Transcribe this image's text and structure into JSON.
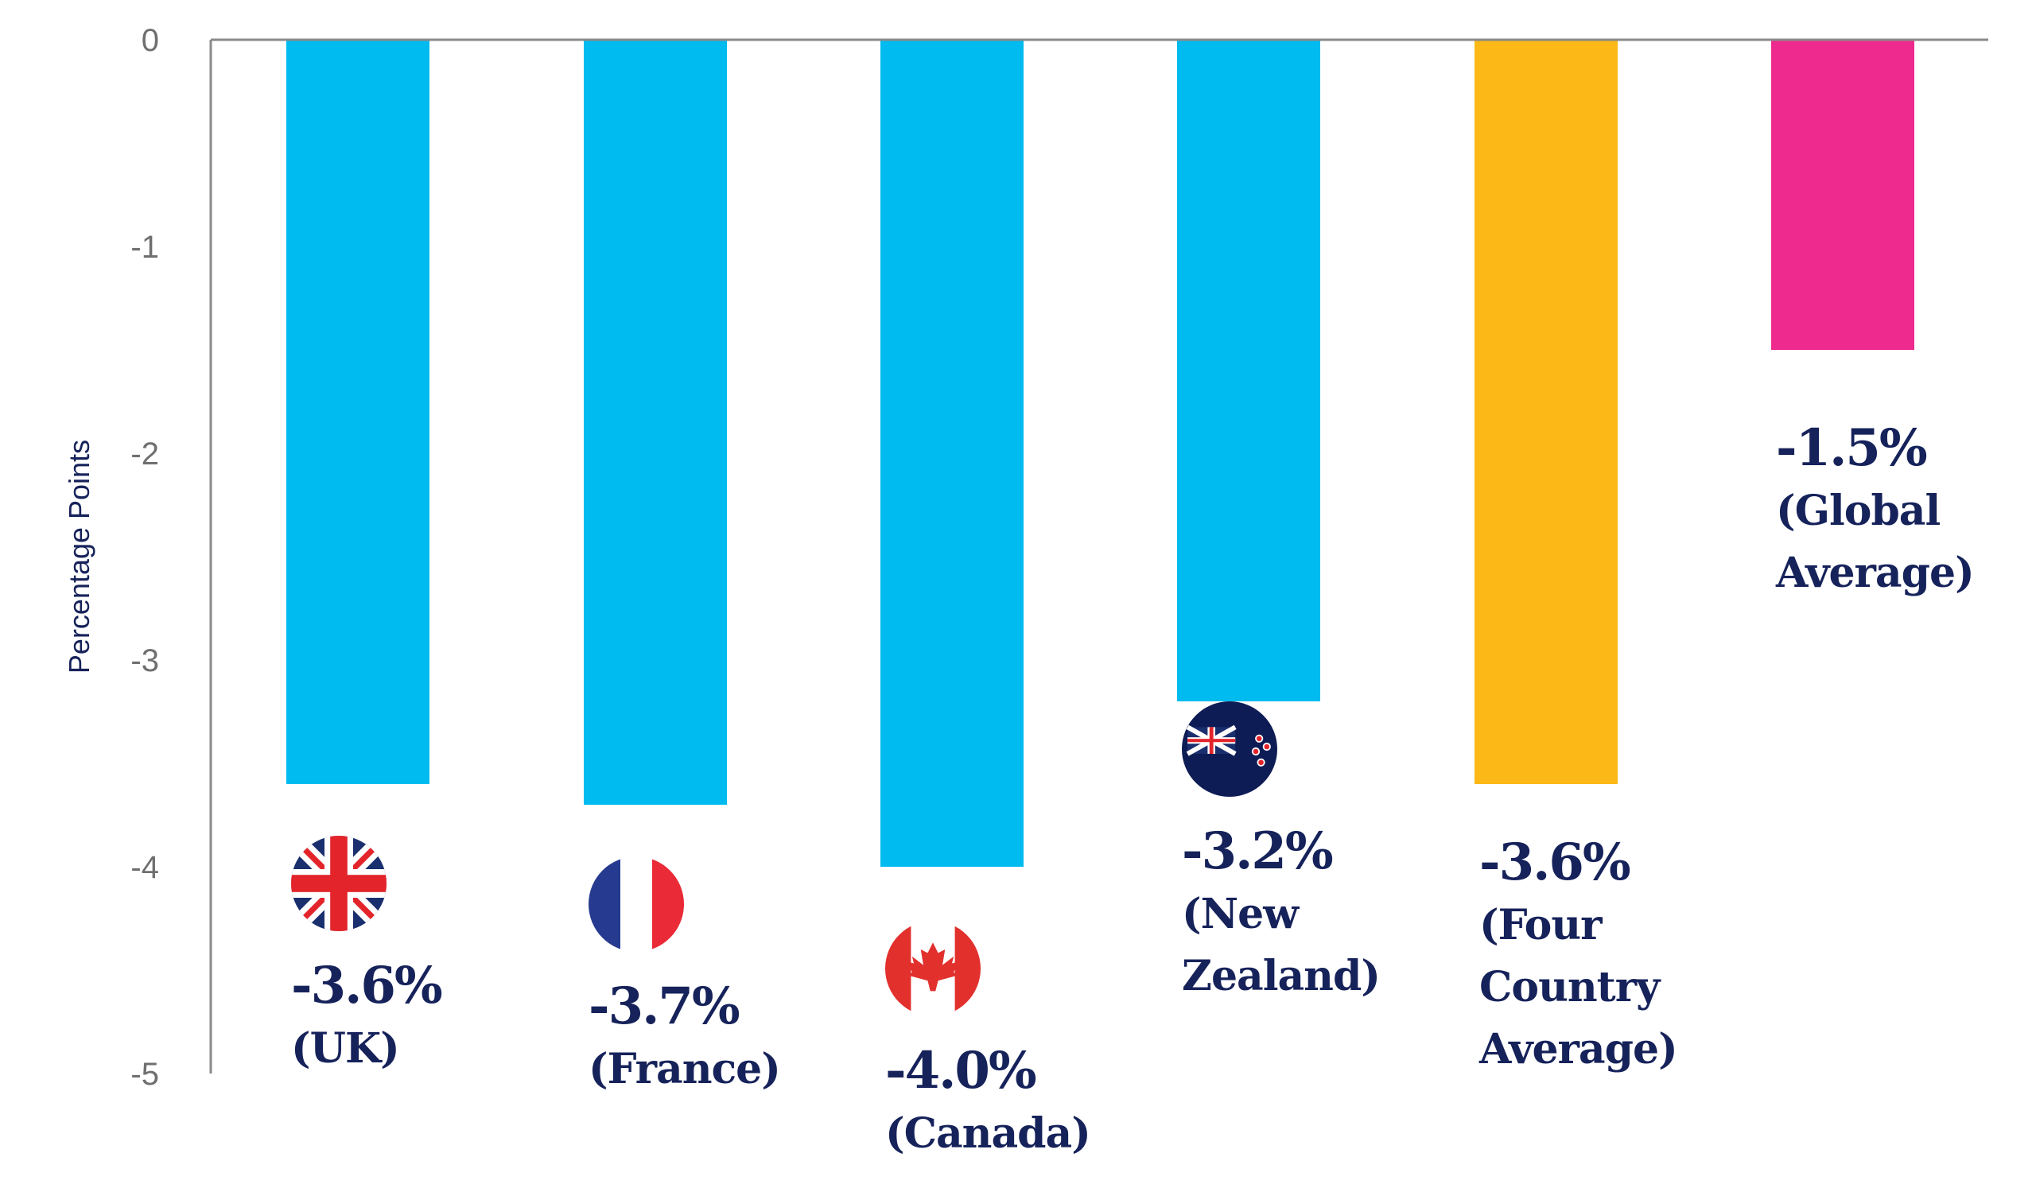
{
  "chart_data": {
    "type": "bar",
    "ylabel": "Percentage Points",
    "ylim": [
      -5,
      0
    ],
    "yticks": [
      "0",
      "-1",
      "-2",
      "-3",
      "-4",
      "-5"
    ],
    "grid": false,
    "colors": {
      "country": "#00bbef",
      "four_country_average": "#fbb817",
      "global_average": "#ee2a8e",
      "text": "#16225a",
      "axis": "#8a8a8a"
    },
    "bars": [
      {
        "value": -3.6,
        "value_label": "-3.6%",
        "category_lines": [
          "(UK)"
        ],
        "color": "#00bbef",
        "flag": "uk-flag-icon"
      },
      {
        "value": -3.7,
        "value_label": "-3.7%",
        "category_lines": [
          "(France)"
        ],
        "color": "#00bbef",
        "flag": "france-flag-icon"
      },
      {
        "value": -4.0,
        "value_label": "-4.0%",
        "category_lines": [
          "(Canada)"
        ],
        "color": "#00bbef",
        "flag": "canada-flag-icon"
      },
      {
        "value": -3.2,
        "value_label": "-3.2%",
        "category_lines": [
          "(New",
          "Zealand)"
        ],
        "color": "#00bbef",
        "flag": "new-zealand-flag-icon"
      },
      {
        "value": -3.6,
        "value_label": "-3.6%",
        "category_lines": [
          "(Four",
          "Country",
          "Average)"
        ],
        "color": "#fbb817",
        "flag": ""
      },
      {
        "value": -1.5,
        "value_label": "-1.5%",
        "category_lines": [
          "(Global",
          "Average)"
        ],
        "color": "#ee2a8e",
        "flag": ""
      }
    ]
  }
}
